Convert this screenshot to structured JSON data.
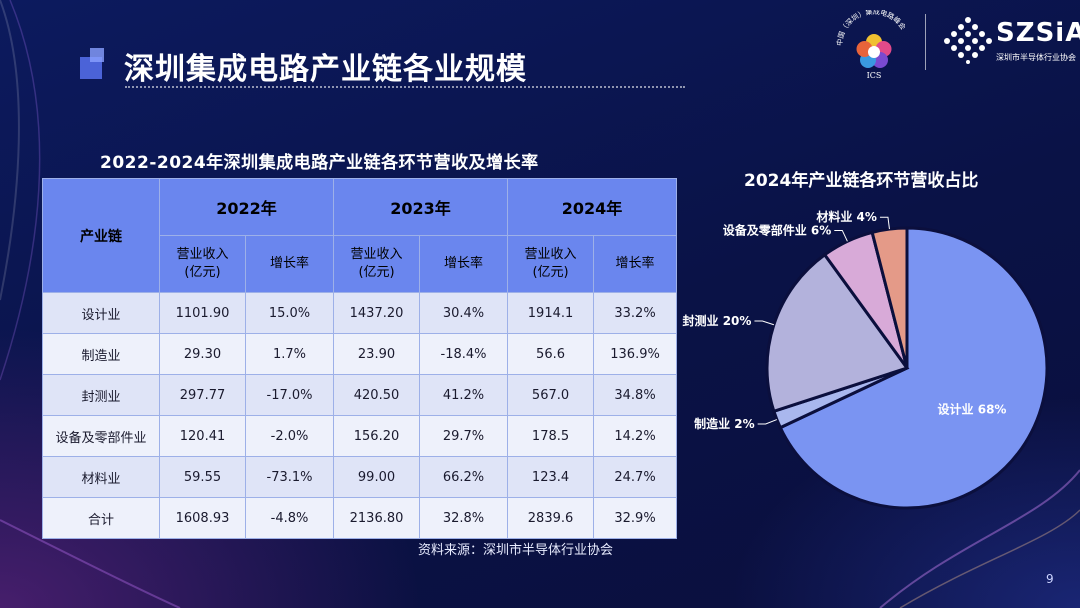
{
  "page": {
    "title": "深圳集成电路产业链各业规模",
    "page_number": "9",
    "source": "资料来源：深圳市半导体行业协会"
  },
  "logos": {
    "ics_arc_text": "中国（深圳）集成电路峰会",
    "ics_label": "ICS",
    "szsia_name": "SZSiA",
    "szsia_sub": "深圳市半导体行业协会"
  },
  "table": {
    "title": "2022-2024年深圳集成电路产业链各环节营收及增长率",
    "row_header": "产业链",
    "years": [
      "2022年",
      "2023年",
      "2024年"
    ],
    "sub_revenue": "营业收入（亿元）",
    "sub_revenue_line1": "营业收入",
    "sub_revenue_line2": "(亿元)",
    "sub_growth": "增长率",
    "rows": [
      {
        "name": "设计业",
        "r2022": "1101.90",
        "g2022": "15.0%",
        "r2023": "1437.20",
        "g2023": "30.4%",
        "r2024": "1914.1",
        "g2024": "33.2%"
      },
      {
        "name": "制造业",
        "r2022": "29.30",
        "g2022": "1.7%",
        "r2023": "23.90",
        "g2023": "-18.4%",
        "r2024": "56.6",
        "g2024": "136.9%"
      },
      {
        "name": "封测业",
        "r2022": "297.77",
        "g2022": "-17.0%",
        "r2023": "420.50",
        "g2023": "41.2%",
        "r2024": "567.0",
        "g2024": "34.8%"
      },
      {
        "name": "设备及零部件业",
        "r2022": "120.41",
        "g2022": "-2.0%",
        "r2023": "156.20",
        "g2023": "29.7%",
        "r2024": "178.5",
        "g2024": "14.2%"
      },
      {
        "name": "材料业",
        "r2022": "59.55",
        "g2022": "-73.1%",
        "r2023": "99.00",
        "g2023": "66.2%",
        "r2024": "123.4",
        "g2024": "24.7%"
      },
      {
        "name": "合计",
        "r2022": "1608.93",
        "g2022": "-4.8%",
        "r2023": "2136.80",
        "g2023": "32.8%",
        "r2024": "2839.6",
        "g2024": "32.9%"
      }
    ]
  },
  "chart_data": {
    "type": "pie",
    "title": "2024年产业链各环节营收占比",
    "slices": [
      {
        "label": "设计业 68%",
        "name": "设计业",
        "value": 68,
        "color": "#7a94f2"
      },
      {
        "label": "制造业 2%",
        "name": "制造业",
        "value": 2,
        "color": "#a9b7ee"
      },
      {
        "label": "封测业 20%",
        "name": "封测业",
        "value": 20,
        "color": "#b3b2dc"
      },
      {
        "label": "设备及零部件业 6%",
        "name": "设备及零部件业",
        "value": 6,
        "color": "#d8aad8"
      },
      {
        "label": "材料业 4%",
        "name": "材料业",
        "value": 4,
        "color": "#e49a88"
      }
    ]
  }
}
